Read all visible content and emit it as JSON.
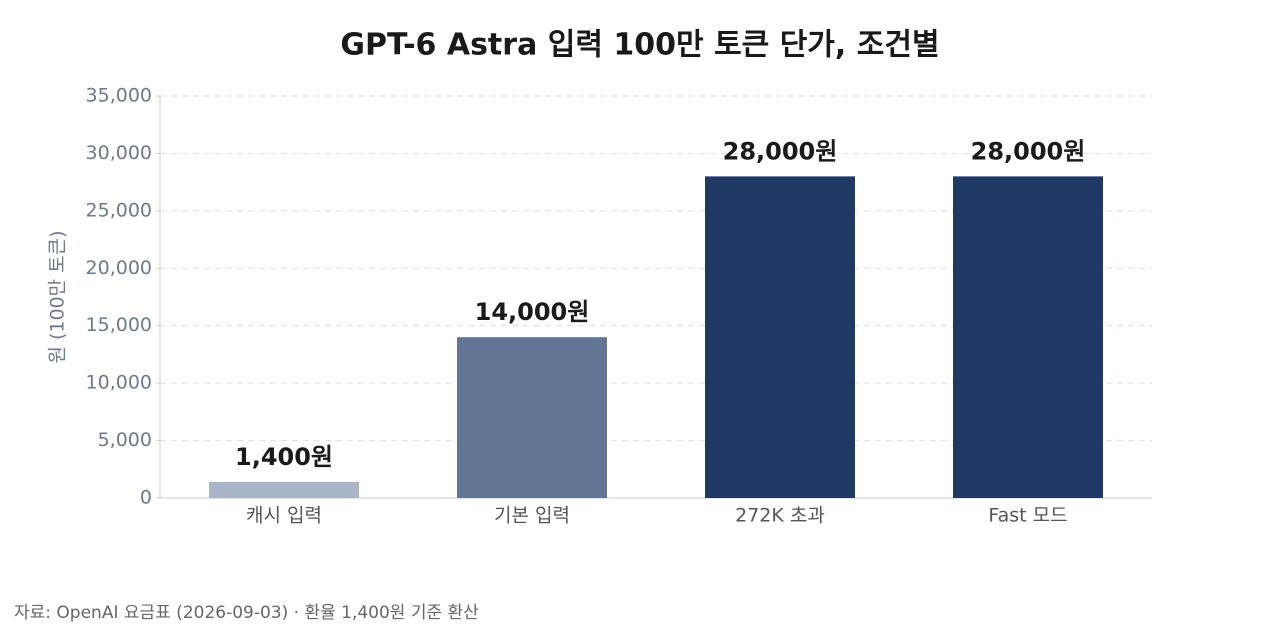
{
  "chart_data": {
    "type": "bar",
    "title": "GPT-6 Astra 입력 100만 토큰 단가, 조건별",
    "y_label": "원 (100만 토큰)",
    "categories": [
      "캐시 입력",
      "기본 입력",
      "272K 초과",
      "Fast 모드"
    ],
    "values": [
      1400,
      14000,
      28000,
      28000
    ],
    "value_labels": [
      "1,400원",
      "14,000원",
      "28,000원",
      "28,000원"
    ],
    "colors": [
      "#a9b4c8",
      "#627594",
      "#203864",
      "#203864"
    ],
    "ylim": [
      0,
      35000
    ],
    "yticks": [
      0,
      {
        "value": 5000,
        "label": "5,000"
      },
      {
        "value": 10000,
        "label": "10,000"
      },
      {
        "value": 15000,
        "label": "15,000"
      },
      {
        "value": 20000,
        "label": "20,000"
      },
      {
        "value": 25000,
        "label": "25,000"
      },
      {
        "value": 30000,
        "label": "30,000"
      },
      {
        "value": 35000,
        "label": "35,000"
      }
    ],
    "grid": true,
    "source": "자료: OpenAI 요금표 (2026-09-03) · 환율 1,400원 기준 환산"
  }
}
